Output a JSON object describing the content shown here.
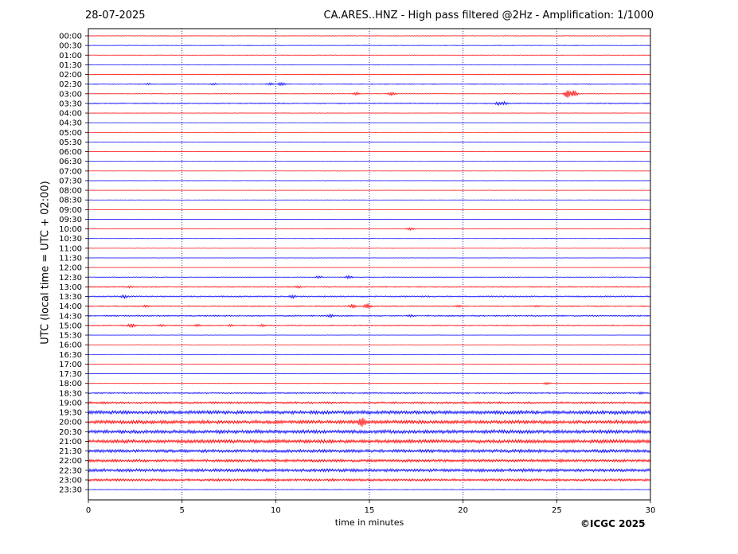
{
  "header": {
    "date": "28-07-2025",
    "title": "CA.ARES..HNZ - High pass filtered @2Hz - Amplification: 1/1000"
  },
  "footer": {
    "copyright": "©ICGC 2025"
  },
  "chart_data": {
    "type": "line",
    "title": "CA.ARES..HNZ - High pass filtered @2Hz - Amplification: 1/1000",
    "xlabel": "time in minutes",
    "ylabel": "UTC (local time = UTC + 02:00)",
    "xlim": [
      0,
      30
    ],
    "x_ticks": [
      0,
      5,
      10,
      15,
      20,
      25,
      30
    ],
    "grid": "vertical dotted lines at 5, 10, 15, 20, 25",
    "colors": {
      "even_rows": "#ff0000",
      "odd_rows": "#0000ff",
      "grid": "#000080"
    },
    "rows": [
      "00:00",
      "00:30",
      "01:00",
      "01:30",
      "02:00",
      "02:30",
      "03:00",
      "03:30",
      "04:00",
      "04:30",
      "05:00",
      "05:30",
      "06:00",
      "06:30",
      "07:00",
      "07:30",
      "08:00",
      "08:30",
      "09:00",
      "09:30",
      "10:00",
      "10:30",
      "11:00",
      "11:30",
      "12:00",
      "12:30",
      "13:00",
      "13:30",
      "14:00",
      "14:30",
      "15:00",
      "15:30",
      "16:00",
      "16:30",
      "17:00",
      "17:30",
      "18:00",
      "18:30",
      "19:00",
      "19:30",
      "20:00",
      "20:30",
      "21:00",
      "21:30",
      "22:00",
      "22:30",
      "23:00",
      "23:30"
    ],
    "noise_level": [
      0.3,
      0.4,
      0.3,
      0.3,
      0.4,
      0.5,
      0.4,
      0.6,
      0.2,
      0.2,
      0.2,
      0.2,
      0.2,
      0.2,
      0.2,
      0.2,
      0.2,
      0.2,
      0.2,
      0.2,
      0.2,
      0.2,
      0.2,
      0.2,
      0.2,
      0.4,
      0.6,
      0.7,
      0.6,
      0.7,
      0.6,
      0.2,
      0.2,
      0.2,
      0.2,
      0.2,
      0.3,
      0.8,
      1.0,
      1.8,
      1.8,
      1.8,
      1.8,
      1.6,
      1.4,
      1.6,
      1.2,
      0.4
    ],
    "events": [
      {
        "row": "02:30",
        "minute": 3.2,
        "amp": 1.5
      },
      {
        "row": "02:30",
        "minute": 6.7,
        "amp": 1.5
      },
      {
        "row": "02:30",
        "minute": 9.7,
        "amp": 2.0
      },
      {
        "row": "02:30",
        "minute": 10.3,
        "amp": 2.5
      },
      {
        "row": "03:00",
        "minute": 14.3,
        "amp": 2.0
      },
      {
        "row": "03:00",
        "minute": 16.2,
        "amp": 2.5
      },
      {
        "row": "03:00",
        "minute": 25.6,
        "amp": 6.0
      },
      {
        "row": "03:00",
        "minute": 25.9,
        "amp": 5.0
      },
      {
        "row": "03:30",
        "minute": 21.9,
        "amp": 2.5
      },
      {
        "row": "03:30",
        "minute": 22.2,
        "amp": 2.5
      },
      {
        "row": "10:00",
        "minute": 17.2,
        "amp": 2.0
      },
      {
        "row": "12:30",
        "minute": 12.3,
        "amp": 2.0
      },
      {
        "row": "12:30",
        "minute": 13.9,
        "amp": 2.0
      },
      {
        "row": "13:00",
        "minute": 2.2,
        "amp": 1.5
      },
      {
        "row": "13:00",
        "minute": 11.2,
        "amp": 1.8
      },
      {
        "row": "13:30",
        "minute": 1.9,
        "amp": 2.5
      },
      {
        "row": "13:30",
        "minute": 10.9,
        "amp": 2.5
      },
      {
        "row": "14:00",
        "minute": 3.1,
        "amp": 1.8
      },
      {
        "row": "14:00",
        "minute": 14.1,
        "amp": 3.0
      },
      {
        "row": "14:00",
        "minute": 14.9,
        "amp": 3.5
      },
      {
        "row": "14:00",
        "minute": 19.8,
        "amp": 2.0
      },
      {
        "row": "14:00",
        "minute": 23.9,
        "amp": 1.8
      },
      {
        "row": "14:30",
        "minute": 12.9,
        "amp": 2.5
      },
      {
        "row": "14:30",
        "minute": 17.2,
        "amp": 2.0
      },
      {
        "row": "15:00",
        "minute": 2.3,
        "amp": 3.0
      },
      {
        "row": "15:00",
        "minute": 3.9,
        "amp": 2.0
      },
      {
        "row": "15:00",
        "minute": 5.8,
        "amp": 1.8
      },
      {
        "row": "15:00",
        "minute": 7.6,
        "amp": 1.8
      },
      {
        "row": "15:00",
        "minute": 9.3,
        "amp": 1.8
      },
      {
        "row": "18:00",
        "minute": 24.5,
        "amp": 1.8
      },
      {
        "row": "18:30",
        "minute": 29.5,
        "amp": 2.0
      },
      {
        "row": "19:00",
        "minute": 0.8,
        "amp": 2.0
      },
      {
        "row": "20:00",
        "minute": 1.3,
        "amp": 2.5
      },
      {
        "row": "20:00",
        "minute": 10.1,
        "amp": 2.5
      },
      {
        "row": "20:00",
        "minute": 14.6,
        "amp": 8.0
      },
      {
        "row": "20:00",
        "minute": 17.3,
        "amp": 2.5
      },
      {
        "row": "21:00",
        "minute": 1.5,
        "amp": 2.5
      },
      {
        "row": "21:00",
        "minute": 28.0,
        "amp": 2.5
      },
      {
        "row": "22:00",
        "minute": 25.2,
        "amp": 2.5
      },
      {
        "row": "22:30",
        "minute": 8.6,
        "amp": 2.5
      },
      {
        "row": "23:00",
        "minute": 6.9,
        "amp": 2.5
      },
      {
        "row": "23:00",
        "minute": 9.6,
        "amp": 2.2
      }
    ]
  }
}
